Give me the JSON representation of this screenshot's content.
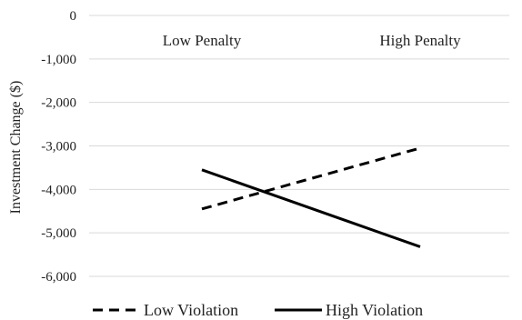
{
  "chart_data": {
    "type": "line",
    "title": "",
    "xlabel": "",
    "ylabel": "Investment Change ($)",
    "categories": [
      "Low Penalty",
      "High Penalty"
    ],
    "ylim": [
      -6000,
      0
    ],
    "y_ticks": [
      0,
      -1000,
      -2000,
      -3000,
      -4000,
      -5000,
      -6000
    ],
    "y_tick_labels": [
      "0",
      "-1,000",
      "-2,000",
      "-3,000",
      "-4,000",
      "-5,000",
      "-6,000"
    ],
    "grid": true,
    "category_labels_position": "top",
    "legend_position": "bottom",
    "series": [
      {
        "name": "Low Violation",
        "style": "dashed",
        "color": "#000000",
        "values": [
          -4450,
          -3050
        ]
      },
      {
        "name": "High Violation",
        "style": "solid",
        "color": "#000000",
        "values": [
          -3550,
          -5320
        ]
      }
    ]
  }
}
